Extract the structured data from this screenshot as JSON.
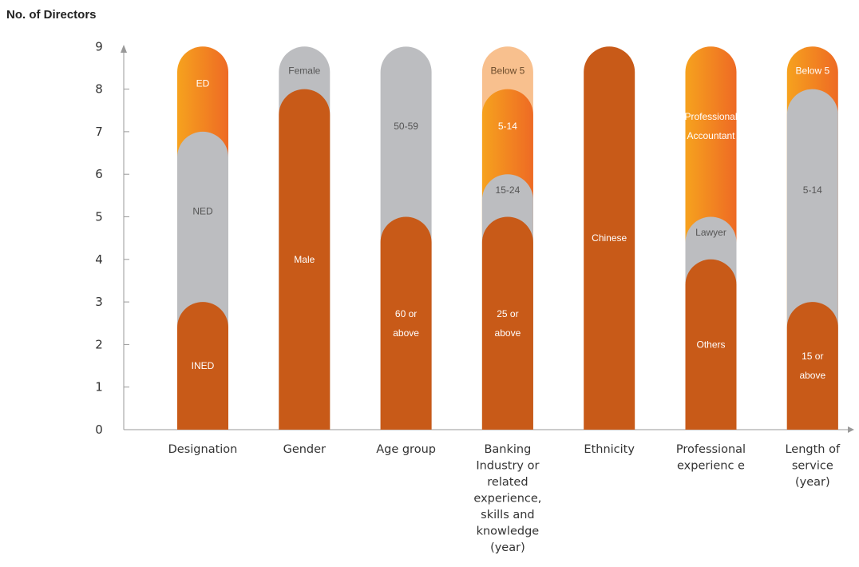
{
  "chart_data": {
    "type": "bar",
    "subtype": "stacked-rounded-column",
    "ylabel": "No. of Directors",
    "ylim": [
      0,
      9
    ],
    "yticks": [
      "0",
      "1",
      "2",
      "3",
      "4",
      "5",
      "6",
      "7",
      "8",
      "9"
    ],
    "colors": {
      "rust": "#c85a18",
      "grey": "#bcbdc0",
      "orange_from": "#f6a21e",
      "orange_to": "#ee6a24",
      "light_orange": "#f8c08e",
      "axis": "#999999"
    },
    "categories": [
      {
        "lines": [
          "Designation"
        ],
        "segments": [
          {
            "value": 3,
            "color": "rust",
            "lines": [
              "INED"
            ]
          },
          {
            "value": 4,
            "color": "grey",
            "lines": [
              "NED"
            ]
          },
          {
            "value": 2,
            "color": "orange",
            "lines": [
              "ED"
            ]
          }
        ]
      },
      {
        "lines": [
          "Gender"
        ],
        "segments": [
          {
            "value": 8,
            "color": "rust",
            "lines": [
              "Male"
            ]
          },
          {
            "value": 1,
            "color": "grey",
            "lines": [
              "Female"
            ]
          }
        ]
      },
      {
        "lines": [
          "Age group"
        ],
        "segments": [
          {
            "value": 5,
            "color": "rust",
            "lines": [
              "60 or",
              "above"
            ]
          },
          {
            "value": 4,
            "color": "grey",
            "lines": [
              "50-59"
            ]
          }
        ]
      },
      {
        "lines": [
          "Banking",
          "Industry or",
          "related",
          "experience,",
          "skills and",
          "knowledge",
          "(year)"
        ],
        "segments": [
          {
            "value": 5,
            "color": "rust",
            "lines": [
              "25 or",
              "above"
            ]
          },
          {
            "value": 1,
            "color": "grey",
            "lines": [
              "15-24"
            ]
          },
          {
            "value": 2,
            "color": "orange",
            "lines": [
              "5-14"
            ]
          },
          {
            "value": 1,
            "color": "light_orange",
            "lines": [
              "Below 5"
            ]
          }
        ]
      },
      {
        "lines": [
          "Ethnicity"
        ],
        "segments": [
          {
            "value": 9,
            "color": "rust",
            "lines": [
              "Chinese"
            ]
          }
        ]
      },
      {
        "lines": [
          "Professional",
          "experienc e"
        ],
        "segments": [
          {
            "value": 4,
            "color": "rust",
            "lines": [
              "Others"
            ]
          },
          {
            "value": 1,
            "color": "grey",
            "lines": [
              "Lawyer"
            ]
          },
          {
            "value": 4,
            "color": "orange",
            "lines": [
              "Professional",
              "Accountant"
            ]
          }
        ]
      },
      {
        "lines": [
          "Length of",
          "service",
          "(year)"
        ],
        "segments": [
          {
            "value": 3,
            "color": "rust",
            "lines": [
              "15 or",
              "above"
            ]
          },
          {
            "value": 5,
            "color": "grey",
            "lines": [
              "5-14"
            ]
          },
          {
            "value": 1,
            "color": "orange",
            "lines": [
              "Below 5"
            ]
          }
        ]
      }
    ]
  }
}
